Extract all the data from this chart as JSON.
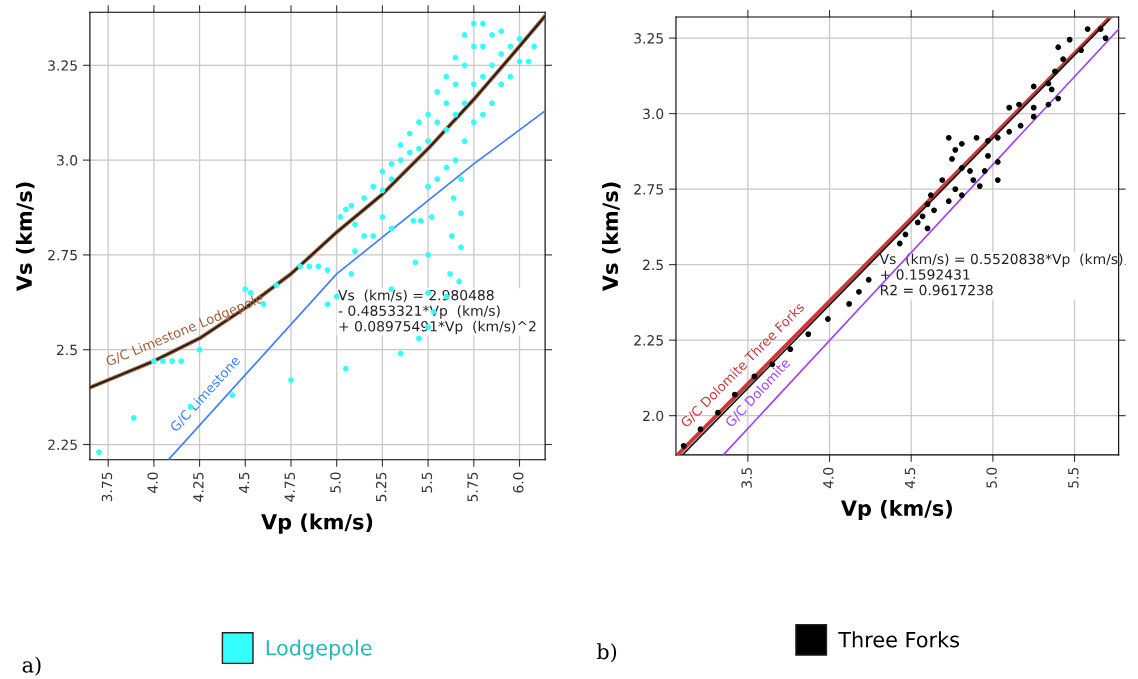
{
  "chart_data": [
    {
      "type": "scatter",
      "xlabel": "Vp (km/s)",
      "ylabel": "Vs (km/s)",
      "xlim": [
        3.65,
        6.14
      ],
      "ylim": [
        2.21,
        3.39
      ],
      "xticks": [
        3.75,
        {
          "value": 4.0,
          "label": "4.0"
        },
        4.25,
        4.5,
        4.75,
        {
          "value": 5.0,
          "label": "5.0"
        },
        5.25,
        5.5,
        5.75,
        {
          "value": 6.0,
          "label": "6.0"
        }
      ],
      "yticks": [
        {
          "value": 2.25,
          "label": "2.25"
        },
        {
          "value": 2.5,
          "label": "2.5"
        },
        {
          "value": 2.75,
          "label": "2.75"
        },
        {
          "value": 3.0,
          "label": "3.0"
        },
        {
          "value": 3.25,
          "label": "3.25"
        }
      ],
      "grid": true,
      "legend": "bottom",
      "annotations": [
        "Vs  (km/s) = 2.980488\n- 0.4853321*Vp  (km/s)\n+ 0.08975491*Vp  (km/s)^2",
        "a)"
      ],
      "series": [
        {
          "name": "Lodgepole",
          "marker": "circle",
          "color": "#33ffff",
          "x": [
            5.05,
            5.02,
            5.08,
            5.1,
            5.15,
            5.2,
            5.25,
            5.25,
            5.3,
            5.3,
            5.35,
            5.35,
            5.4,
            5.4,
            5.45,
            5.45,
            5.5,
            5.5,
            5.55,
            5.55,
            5.6,
            5.6,
            5.6,
            5.65,
            5.65,
            5.65,
            5.7,
            5.7,
            5.7,
            5.7,
            5.75,
            5.75,
            5.75,
            5.75,
            5.8,
            5.8,
            5.8,
            5.8,
            5.85,
            5.85,
            5.85,
            5.9,
            5.9,
            5.9,
            5.95,
            5.95,
            6.0,
            6.0,
            6.05,
            6.08,
            5.55,
            5.6,
            5.65,
            5.25,
            5.2,
            5.3,
            3.7,
            3.89,
            4.0,
            4.05,
            4.1,
            4.15,
            4.2,
            4.25,
            4.43,
            4.5,
            4.53,
            4.6,
            4.67,
            4.75,
            4.8,
            4.85,
            4.9,
            4.95,
            4.95,
            5.0,
            5.05,
            5.08,
            5.1,
            5.15,
            5.3,
            5.35,
            5.43,
            5.45,
            5.5,
            5.5,
            5.5,
            5.52,
            5.5,
            5.53,
            5.6,
            5.62,
            5.63,
            5.64,
            5.67,
            5.68,
            5.68,
            5.68,
            5.42,
            5.46
          ],
          "values": [
            2.87,
            2.85,
            2.88,
            2.83,
            2.9,
            2.93,
            2.97,
            2.92,
            2.99,
            2.95,
            3.0,
            3.04,
            3.02,
            3.07,
            3.03,
            3.1,
            3.05,
            3.12,
            3.1,
            3.18,
            3.08,
            3.15,
            3.22,
            3.12,
            3.2,
            3.27,
            3.05,
            3.15,
            3.25,
            3.33,
            3.1,
            3.2,
            3.3,
            3.36,
            3.12,
            3.22,
            3.3,
            3.36,
            3.15,
            3.25,
            3.33,
            3.2,
            3.28,
            3.34,
            3.22,
            3.3,
            3.26,
            3.32,
            3.26,
            3.3,
            2.95,
            2.98,
            3.0,
            2.85,
            2.8,
            2.82,
            2.23,
            2.32,
            2.47,
            2.47,
            2.47,
            2.47,
            2.35,
            2.5,
            2.38,
            2.66,
            2.65,
            2.62,
            2.67,
            2.42,
            2.72,
            2.72,
            2.72,
            2.71,
            2.62,
            2.64,
            2.45,
            2.7,
            2.76,
            2.8,
            2.66,
            2.49,
            2.73,
            2.53,
            2.56,
            2.65,
            2.75,
            2.85,
            2.93,
            2.6,
            2.64,
            2.7,
            2.8,
            2.9,
            2.68,
            2.77,
            2.86,
            2.95,
            2.84,
            2.84
          ]
        },
        {
          "name": "G/C Limestone Lodgepole",
          "type": "line",
          "marker": "none",
          "color": "#a0603a",
          "x": [
            3.65,
            3.8,
            4.0,
            4.25,
            4.5,
            4.75,
            5.0,
            5.25,
            5.5,
            5.75,
            6.0,
            6.14
          ],
          "values": [
            2.4,
            2.43,
            2.47,
            2.53,
            2.61,
            2.7,
            2.81,
            2.91,
            3.03,
            3.16,
            3.3,
            3.38
          ]
        },
        {
          "type": "line",
          "marker": "none",
          "color": "#1a1a1a",
          "x": [
            3.65,
            3.8,
            4.0,
            4.25,
            4.5,
            4.75,
            5.0,
            5.25,
            5.5,
            5.75,
            6.0,
            6.14
          ],
          "values": [
            2.4,
            2.43,
            2.47,
            2.53,
            2.61,
            2.7,
            2.81,
            2.91,
            3.03,
            3.16,
            3.3,
            3.38
          ]
        },
        {
          "name": "G/C Limestone",
          "type": "line",
          "marker": "none",
          "color": "#3d7fff",
          "x": [
            4.08,
            5.0,
            5.75,
            6.14
          ],
          "values": [
            2.21,
            2.7,
            2.99,
            3.13
          ]
        }
      ]
    },
    {
      "type": "scatter",
      "xlabel": "Vp (km/s)",
      "ylabel": "Vs (km/s)",
      "xlim": [
        3.06,
        5.77
      ],
      "ylim": [
        1.87,
        3.32
      ],
      "xticks": [
        {
          "value": 3.5,
          "label": "3.5"
        },
        {
          "value": 4.0,
          "label": "4.0"
        },
        {
          "value": 4.5,
          "label": "4.5"
        },
        {
          "value": 5.0,
          "label": "5.0"
        },
        {
          "value": 5.5,
          "label": "5.5"
        }
      ],
      "yticks": [
        {
          "value": 2.0,
          "label": "2.0"
        },
        {
          "value": 2.25,
          "label": "2.25"
        },
        {
          "value": 2.5,
          "label": "2.5"
        },
        {
          "value": 2.75,
          "label": "2.75"
        },
        {
          "value": 3.0,
          "label": "3.0"
        },
        {
          "value": 3.25,
          "label": "3.25"
        }
      ],
      "grid": true,
      "legend": "bottom",
      "annotations": [
        "Vs  (km/s) = 0.5520838*Vp  (km/s)\n+ 0.1592431\nR2 = 0.9617238",
        "b)"
      ],
      "series": [
        {
          "name": "Three Forks",
          "marker": "circle",
          "color": "#000000",
          "x": [
            3.107,
            3.21,
            3.317,
            3.42,
            3.54,
            3.65,
            3.76,
            3.87,
            3.99,
            4.12,
            4.18,
            4.24,
            4.43,
            4.465,
            4.54,
            4.6,
            4.73,
            4.77,
            4.81,
            4.88,
            4.95,
            4.9,
            4.97,
            5.03,
            5.03,
            5.1,
            5.16,
            5.25,
            5.34,
            5.34,
            5.25,
            5.38,
            5.4,
            5.47,
            5.58,
            5.66,
            5.69,
            5.54,
            5.43,
            4.62,
            4.69,
            4.57,
            4.6,
            4.73,
            4.81,
            4.92,
            5.03,
            4.97,
            5.1,
            5.17,
            5.25,
            5.4,
            5.36,
            4.64,
            4.75,
            4.81,
            4.86,
            4.77
          ],
          "values": [
            1.9,
            1.955,
            2.01,
            2.07,
            2.13,
            2.17,
            2.22,
            2.27,
            2.32,
            2.37,
            2.41,
            2.45,
            2.57,
            2.6,
            2.64,
            2.7,
            2.92,
            2.88,
            2.82,
            2.78,
            2.81,
            2.92,
            2.86,
            2.84,
            2.92,
            3.02,
            3.03,
            3.02,
            3.03,
            3.1,
            3.09,
            3.14,
            3.22,
            3.245,
            3.28,
            3.28,
            3.25,
            3.21,
            3.18,
            2.73,
            2.78,
            2.66,
            2.62,
            2.71,
            2.73,
            2.76,
            2.78,
            2.91,
            2.94,
            2.96,
            2.99,
            3.05,
            3.08,
            2.68,
            2.85,
            2.9,
            2.81,
            2.75
          ]
        },
        {
          "name": "G/C Dolomite Three Forks",
          "type": "line",
          "marker": "none",
          "color": "#c83a3a",
          "x": [
            3.07,
            5.72
          ],
          "values": [
            1.87,
            3.32
          ]
        },
        {
          "type": "line",
          "marker": "none",
          "color": "#1a1a1a",
          "x": [
            3.1,
            5.71
          ],
          "values": [
            1.87,
            3.31
          ]
        },
        {
          "name": "G/C Dolomite",
          "type": "line",
          "marker": "none",
          "color": "#a040ff",
          "x": [
            3.35,
            5.77
          ],
          "values": [
            1.87,
            3.28
          ]
        }
      ]
    }
  ]
}
